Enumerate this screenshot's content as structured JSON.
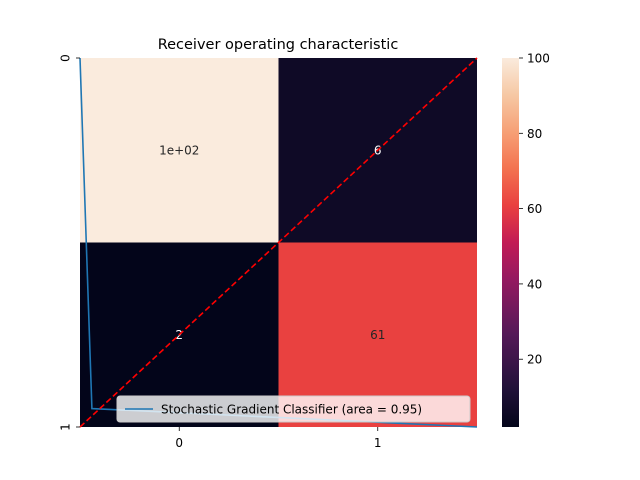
{
  "chart_data": [
    {
      "type": "heatmap",
      "title": "Receiver operating characteristic",
      "rows": [
        "0",
        "1"
      ],
      "cols": [
        "0",
        "1"
      ],
      "values": [
        [
          100,
          6
        ],
        [
          2,
          61
        ]
      ],
      "cell_labels": [
        [
          "1e+02",
          "6"
        ],
        [
          "2",
          "61"
        ]
      ],
      "colorbar": {
        "range": [
          2,
          100
        ],
        "ticks": [
          "20",
          "40",
          "60",
          "80",
          "100"
        ],
        "tick_values": [
          20,
          40,
          60,
          80,
          100
        ],
        "colormap": "rocket"
      }
    },
    {
      "type": "line",
      "series": [
        {
          "name": "Stochastic Gradient Classifier (area = 0.95)",
          "color": "#1f77b4",
          "x": [
            0.0,
            0.03,
            1.0
          ],
          "y": [
            1.0,
            0.05,
            0.0
          ]
        },
        {
          "color": "#ff0000",
          "style": "dashed",
          "x": [
            0.0,
            1.0
          ],
          "y": [
            0.0,
            1.0
          ]
        }
      ],
      "legend": {
        "position": "lower right",
        "entries": [
          "Stochastic Gradient Classifier (area = 0.95)"
        ]
      }
    }
  ]
}
